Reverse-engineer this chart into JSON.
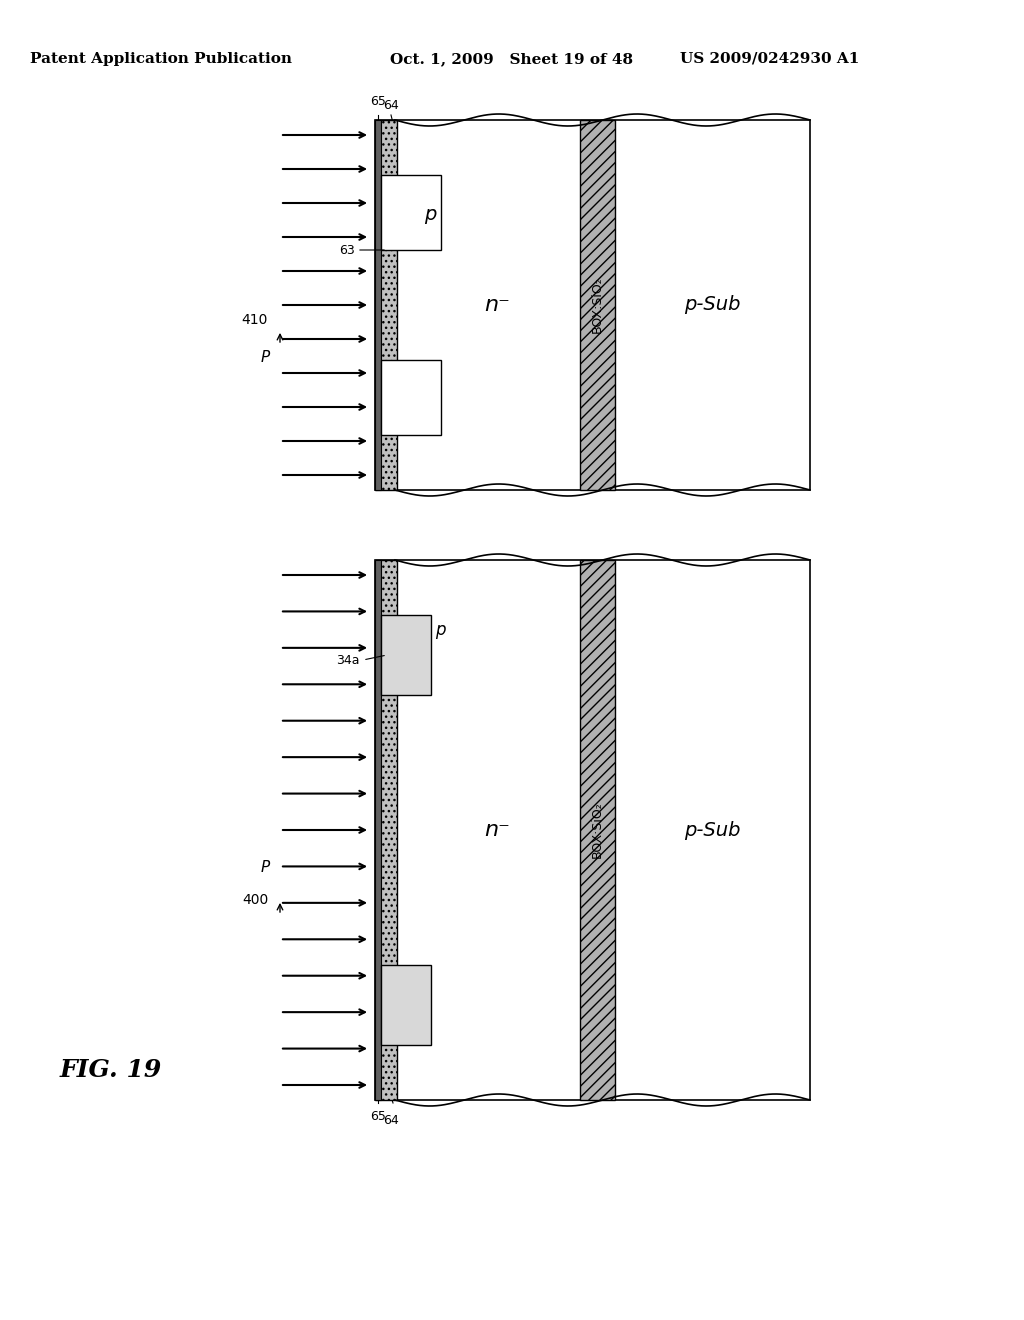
{
  "bg_color": "#ffffff",
  "title_left": "Patent Application Publication",
  "title_mid": "Oct. 1, 2009   Sheet 19 of 48",
  "title_right": "US 2009/0242930 A1",
  "fig_label": "FIG. 19",
  "diagram_top": {
    "label": "410",
    "p_label": "P",
    "region_p": "p",
    "region_n": "n⁻",
    "region_box": "BOX:SiO₂",
    "region_psub": "p-Sub",
    "label_63": "63",
    "label_64": "64",
    "label_65": "65"
  },
  "diagram_bottom": {
    "label": "400",
    "p_label": "P",
    "region_p": "p",
    "region_n": "n⁻",
    "region_box": "BOX:SiO₂",
    "region_psub": "p-Sub",
    "label_34a": "34a",
    "label_64": "64",
    "label_65": "65"
  }
}
